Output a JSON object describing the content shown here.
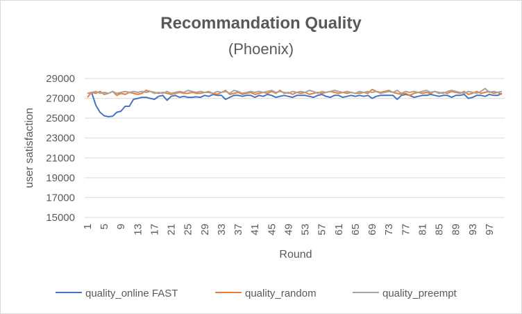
{
  "chart_data": {
    "type": "line",
    "title": "Recommandation Quality",
    "subtitle": "(Phoenix)",
    "xlabel": "Round",
    "ylabel": "user satisfaction",
    "ylim": [
      15000,
      29000
    ],
    "yticks": [
      15000,
      17000,
      19000,
      21000,
      23000,
      25000,
      27000,
      29000
    ],
    "xticks": [
      1,
      5,
      9,
      13,
      17,
      21,
      25,
      29,
      33,
      37,
      41,
      45,
      49,
      53,
      57,
      61,
      65,
      69,
      73,
      77,
      81,
      85,
      89,
      93,
      97
    ],
    "x_range": [
      1,
      100
    ],
    "grid": "horizontal",
    "legend_position": "bottom",
    "series": [
      {
        "name": "quality_online FAST",
        "color": "#4472C4",
        "values": [
          27500,
          27600,
          26300,
          25600,
          25250,
          25150,
          25200,
          25600,
          25700,
          26200,
          26200,
          26900,
          27000,
          27100,
          27100,
          27000,
          26900,
          27200,
          27300,
          26800,
          27200,
          27300,
          27100,
          27200,
          27100,
          27100,
          27150,
          27100,
          27300,
          27200,
          27400,
          27300,
          27300,
          26900,
          27100,
          27300,
          27300,
          27200,
          27300,
          27300,
          27100,
          27300,
          27200,
          27400,
          27300,
          27100,
          27200,
          27300,
          27200,
          27100,
          27300,
          27300,
          27300,
          27200,
          27100,
          27300,
          27400,
          27200,
          27100,
          27300,
          27300,
          27100,
          27200,
          27300,
          27200,
          27300,
          27200,
          27300,
          27000,
          27200,
          27300,
          27300,
          27300,
          27300,
          26900,
          27300,
          27400,
          27300,
          27100,
          27200,
          27300,
          27300,
          27400,
          27300,
          27200,
          27300,
          27300,
          27100,
          27300,
          27300,
          27400,
          27000,
          27100,
          27300,
          27300,
          27200,
          27400,
          27300,
          27300,
          27500
        ]
      },
      {
        "name": "quality_random",
        "color": "#ED7D31",
        "values": [
          27100,
          27600,
          27500,
          27700,
          27400,
          27500,
          27700,
          27300,
          27500,
          27400,
          27600,
          27500,
          27400,
          27500,
          27800,
          27700,
          27600,
          27500,
          27600,
          27500,
          27400,
          27500,
          27600,
          27500,
          27500,
          27600,
          27500,
          27500,
          27600,
          27600,
          27500,
          27400,
          27600,
          27800,
          27400,
          27500,
          27600,
          27400,
          27500,
          27600,
          27400,
          27500,
          27600,
          27500,
          27700,
          27500,
          27800,
          27500,
          27600,
          27400,
          27600,
          27500,
          27600,
          27400,
          27500,
          27600,
          27500,
          27600,
          27700,
          27600,
          27500,
          27600,
          27500,
          27600,
          27500,
          27500,
          27600,
          27500,
          27900,
          27700,
          27600,
          27700,
          27800,
          27600,
          27500,
          27400,
          27500,
          27300,
          27500,
          27600,
          27500,
          27600,
          27500,
          27700,
          27500,
          27600,
          27500,
          27700,
          27600,
          27500,
          27700,
          27400,
          27500,
          27700,
          27500,
          27600,
          27700,
          27500,
          27600,
          27400
        ]
      },
      {
        "name": "quality_preempt",
        "color": "#A5A5A5",
        "values": [
          27500,
          27600,
          27700,
          27500,
          27600,
          27500,
          27700,
          27500,
          27600,
          27700,
          27600,
          27700,
          27600,
          27700,
          27600,
          27700,
          27500,
          27600,
          27500,
          27700,
          27500,
          27600,
          27700,
          27600,
          27800,
          27700,
          27600,
          27700,
          27600,
          27700,
          27500,
          27700,
          27600,
          27700,
          27500,
          27800,
          27700,
          27500,
          27600,
          27700,
          27600,
          27700,
          27600,
          27700,
          27800,
          27600,
          27700,
          27600,
          27500,
          27700,
          27600,
          27700,
          27600,
          27800,
          27700,
          27500,
          27700,
          27600,
          27700,
          27800,
          27700,
          27600,
          27700,
          27600,
          27500,
          27700,
          27600,
          27700,
          27600,
          27700,
          27500,
          27600,
          27700,
          27600,
          27800,
          27500,
          27700,
          27600,
          27700,
          27600,
          27700,
          27800,
          27600,
          27700,
          27600,
          27500,
          27700,
          27800,
          27700,
          27600,
          27500,
          27700,
          27600,
          27500,
          27700,
          28000,
          27600,
          27700,
          27600,
          27700
        ]
      }
    ]
  }
}
